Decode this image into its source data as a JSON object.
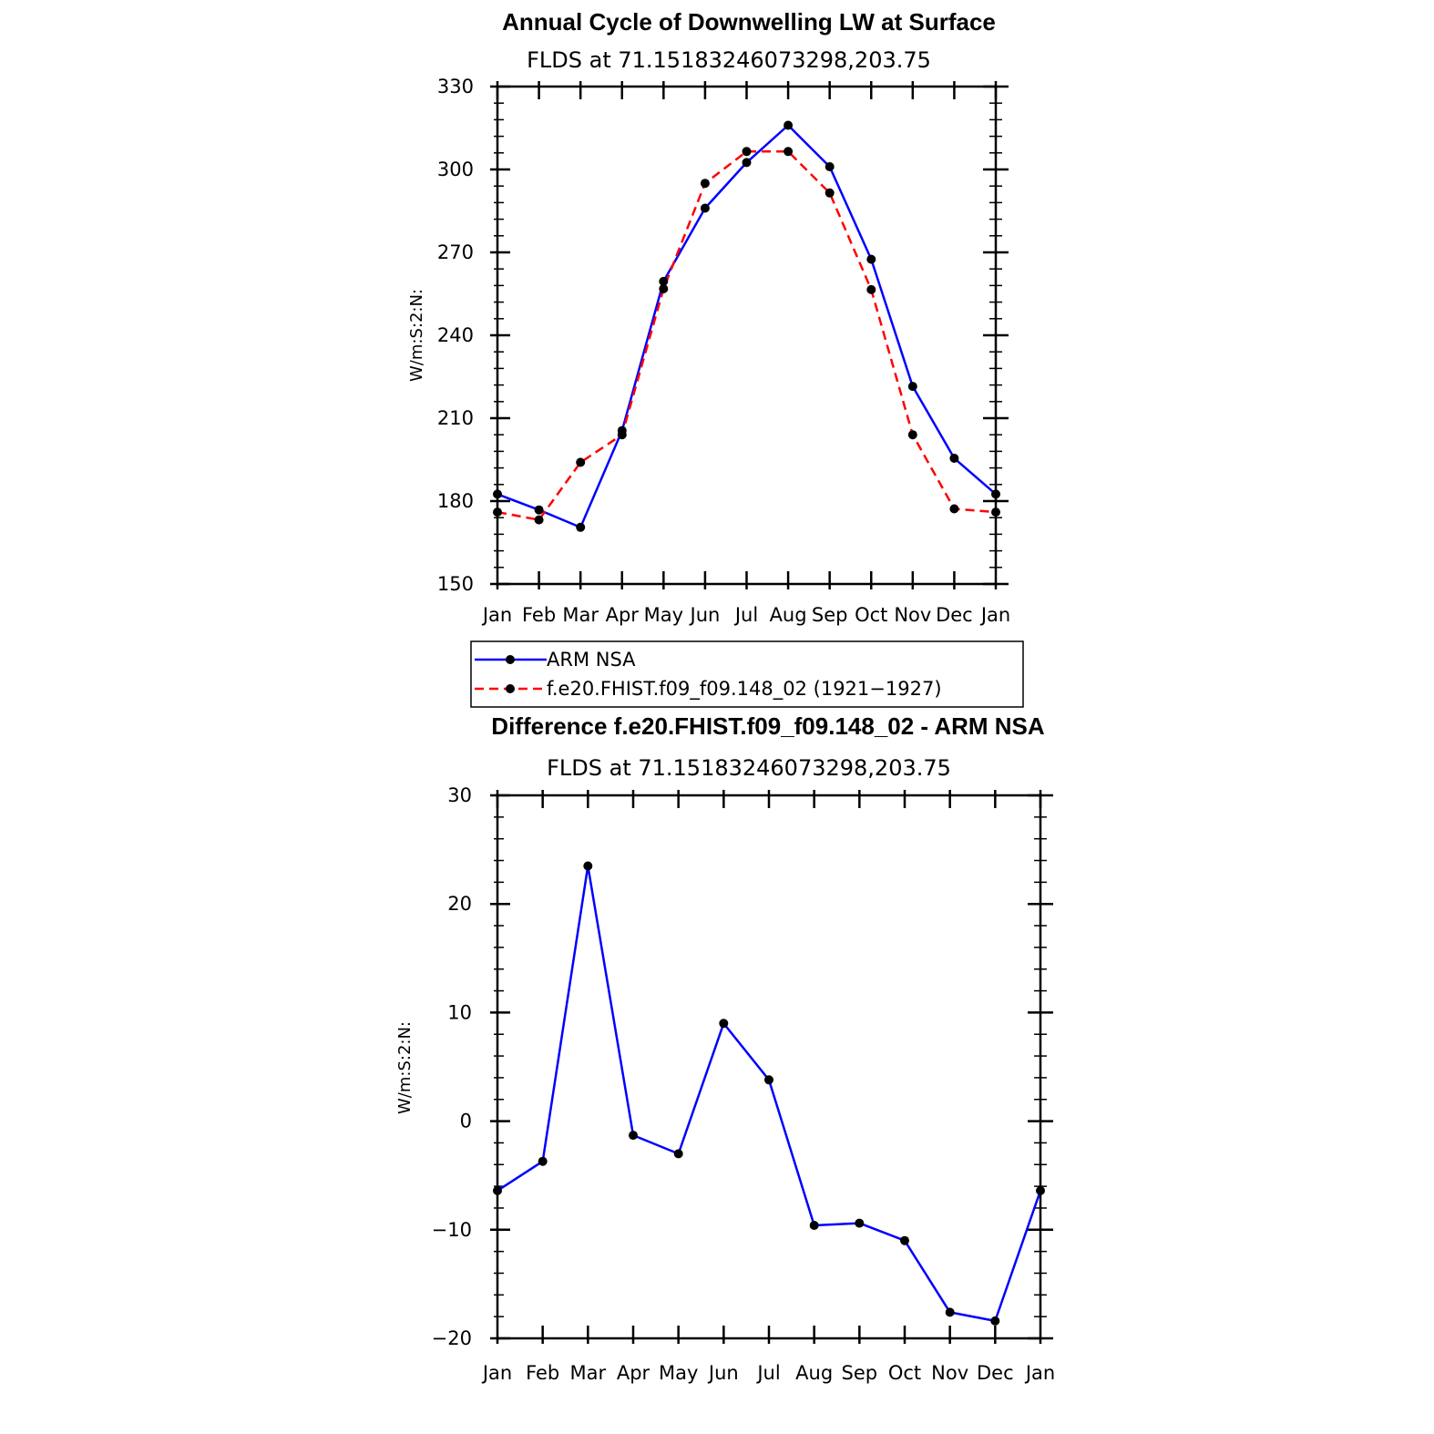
{
  "chart_data": [
    {
      "type": "line",
      "title": "Annual Cycle of Downwelling LW at Surface",
      "subtitle": "FLDS at 71.15183246073298,203.75",
      "ylabel": "W/m:S:2:N:",
      "xlabel": "",
      "categories": [
        "Jan",
        "Feb",
        "Mar",
        "Apr",
        "May",
        "Jun",
        "Jul",
        "Aug",
        "Sep",
        "Oct",
        "Nov",
        "Dec",
        "Jan"
      ],
      "ylim": [
        150,
        330
      ],
      "yticks": [
        150,
        180,
        210,
        240,
        270,
        300,
        330
      ],
      "legend_position": "bottom",
      "series": [
        {
          "name": "ARM NSA",
          "color": "#0000ff",
          "dash": "solid",
          "values": [
            182.5,
            176.8,
            170.5,
            205.5,
            259.5,
            286.0,
            302.5,
            316.0,
            301.0,
            267.5,
            221.5,
            195.5,
            182.5
          ]
        },
        {
          "name": "f.e20.FHIST.f09_f09.148_02 (1921−1927)",
          "color": "#ff0000",
          "dash": "dashed",
          "values": [
            176.0,
            173.2,
            194.0,
            204.0,
            256.8,
            295.0,
            306.5,
            306.5,
            291.5,
            256.5,
            204.0,
            177.2,
            176.0
          ]
        }
      ]
    },
    {
      "type": "line",
      "title": "Difference f.e20.FHIST.f09_f09.148_02 - ARM NSA",
      "subtitle": "FLDS at 71.15183246073298,203.75",
      "ylabel": "W/m:S:2:N:",
      "xlabel": "",
      "categories": [
        "Jan",
        "Feb",
        "Mar",
        "Apr",
        "May",
        "Jun",
        "Jul",
        "Aug",
        "Sep",
        "Oct",
        "Nov",
        "Dec",
        "Jan"
      ],
      "ylim": [
        -20,
        30
      ],
      "yticks": [
        -20,
        -10,
        0,
        10,
        20,
        30
      ],
      "ytick_labels": [
        "−20",
        "−10",
        "0",
        "10",
        "20",
        "30"
      ],
      "series": [
        {
          "color": "#0000ff",
          "dash": "solid",
          "values": [
            -6.4,
            -3.7,
            23.5,
            -1.3,
            -3.0,
            9.0,
            3.8,
            -9.6,
            -9.4,
            -11.0,
            -17.6,
            -18.4,
            -6.4
          ]
        }
      ]
    }
  ]
}
